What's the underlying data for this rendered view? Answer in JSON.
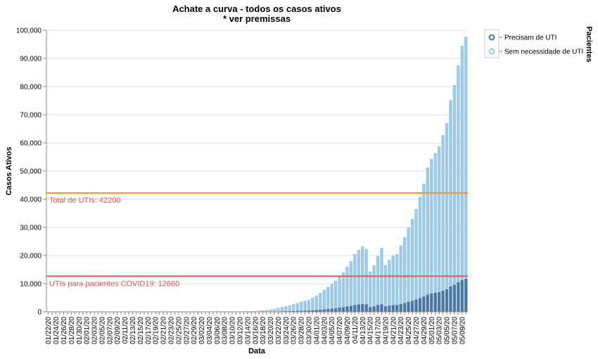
{
  "chart_data": {
    "type": "bar",
    "stacked": true,
    "title": [
      "Achate a curva - todos os casos ativos",
      "* ver premissas"
    ],
    "x_label": "Data",
    "y_label": "Casos Ativos",
    "legend_title": "Pacientes",
    "legend": "top-right",
    "grid": true,
    "categories": [
      "01/22/20",
      null,
      "01/24/20",
      null,
      "01/26/20",
      null,
      "01/28/20",
      null,
      "01/30/20",
      null,
      "02/01/20",
      null,
      "02/03/20",
      null,
      "02/05/20",
      null,
      "02/07/20",
      null,
      "02/09/20",
      null,
      "02/11/20",
      null,
      "02/13/20",
      null,
      "02/15/20",
      null,
      "02/17/20",
      null,
      "02/19/20",
      null,
      "02/21/20",
      null,
      "02/23/20",
      null,
      "02/25/20",
      null,
      "02/27/20",
      null,
      "02/29/20",
      null,
      "03/02/20",
      null,
      "03/04/20",
      null,
      "03/06/20",
      null,
      "03/08/20",
      null,
      "03/10/20",
      null,
      "03/12/20",
      null,
      "03/14/20",
      null,
      "03/16/20",
      null,
      "03/18/20",
      null,
      "03/20/20",
      null,
      "03/22/20",
      null,
      "03/24/20",
      null,
      "03/26/20",
      null,
      "03/28/20",
      null,
      "03/30/20",
      null,
      "04/01/20",
      null,
      "04/03/20",
      null,
      "04/05/20",
      null,
      "04/07/20",
      null,
      "04/09/20",
      null,
      "04/11/20",
      null,
      "04/13/20",
      null,
      "04/15/20",
      null,
      "04/17/20",
      null,
      "04/19/20",
      null,
      "04/21/20",
      null,
      "04/23/20",
      null,
      "04/25/20",
      null,
      "04/27/20",
      null,
      "04/29/20",
      null,
      "05/01/20",
      null,
      "05/03/20",
      null,
      "05/05/20",
      null,
      "05/07/20",
      null,
      "05/09/20",
      null
    ],
    "series": [
      {
        "name": "Precisam de UTI",
        "color": "#4c78a8",
        "values": [
          0,
          0,
          0,
          0,
          0,
          0,
          0,
          0,
          0,
          0,
          0,
          0,
          0,
          0,
          0,
          0,
          0,
          0,
          0,
          0,
          0,
          0,
          0,
          0,
          0,
          0,
          0,
          0,
          0,
          0,
          0,
          0,
          0,
          0,
          0,
          0,
          0,
          0,
          0,
          0,
          0,
          0,
          0,
          0,
          0,
          1,
          2,
          4,
          6,
          8,
          12,
          18,
          24,
          30,
          36,
          48,
          60,
          78,
          96,
          120,
          168,
          204,
          240,
          276,
          324,
          372,
          432,
          468,
          516,
          600,
          700,
          820,
          940,
          1070,
          1200,
          1320,
          1500,
          1680,
          1920,
          2160,
          2460,
          2640,
          2800,
          2680,
          1720,
          1980,
          2380,
          2720,
          2000,
          2220,
          2400,
          2460,
          2820,
          3180,
          3600,
          3960,
          4380,
          4900,
          5460,
          6160,
          6520,
          6760,
          7060,
          7540,
          8040,
          9040,
          9660,
          10510,
          11340,
          11740
        ]
      },
      {
        "name": "Sem necessidade de UTI",
        "color": "#9ecae9",
        "values": [
          0,
          0,
          0,
          0,
          0,
          0,
          0,
          0,
          0,
          0,
          0,
          0,
          0,
          0,
          0,
          0,
          0,
          0,
          0,
          0,
          0,
          0,
          0,
          0,
          0,
          0,
          0,
          0,
          0,
          0,
          0,
          0,
          0,
          0,
          0,
          0,
          0,
          0,
          0,
          0,
          0,
          0,
          0,
          0,
          0,
          9,
          18,
          26,
          44,
          62,
          88,
          132,
          176,
          220,
          264,
          352,
          440,
          572,
          704,
          880,
          1232,
          1496,
          1760,
          2024,
          2376,
          2728,
          3168,
          3432,
          3784,
          4400,
          5100,
          5980,
          6860,
          7830,
          8800,
          9680,
          11000,
          12320,
          14080,
          15840,
          18040,
          19360,
          20500,
          19620,
          12580,
          14520,
          17420,
          19980,
          14600,
          16280,
          17600,
          18040,
          20680,
          23320,
          26400,
          29040,
          32120,
          35900,
          40040,
          45140,
          47780,
          49540,
          51740,
          55260,
          58960,
          66260,
          70840,
          77090,
          83160,
          86060
        ]
      }
    ],
    "ylim": [
      0,
      100000
    ],
    "yticks": [
      0,
      {
        "value": 10000,
        "label": "10,000"
      },
      {
        "value": 20000,
        "label": "20,000"
      },
      {
        "value": 30000,
        "label": "30,000"
      },
      {
        "value": 40000,
        "label": "40,000"
      },
      {
        "value": 50000,
        "label": "50,000"
      },
      {
        "value": 60000,
        "label": "60,000"
      },
      {
        "value": 70000,
        "label": "70,000"
      },
      {
        "value": 80000,
        "label": "80,000"
      },
      {
        "value": 90000,
        "label": "90,000"
      },
      {
        "value": 100000,
        "label": "100,000"
      }
    ],
    "annotations": [
      {
        "label": "Total de UTIs: 42200",
        "value": 42200,
        "color": "#f0922b"
      },
      {
        "label": "UTIs para pacientes COVID19: 12660",
        "value": 12660,
        "color": "#e45756"
      }
    ]
  }
}
